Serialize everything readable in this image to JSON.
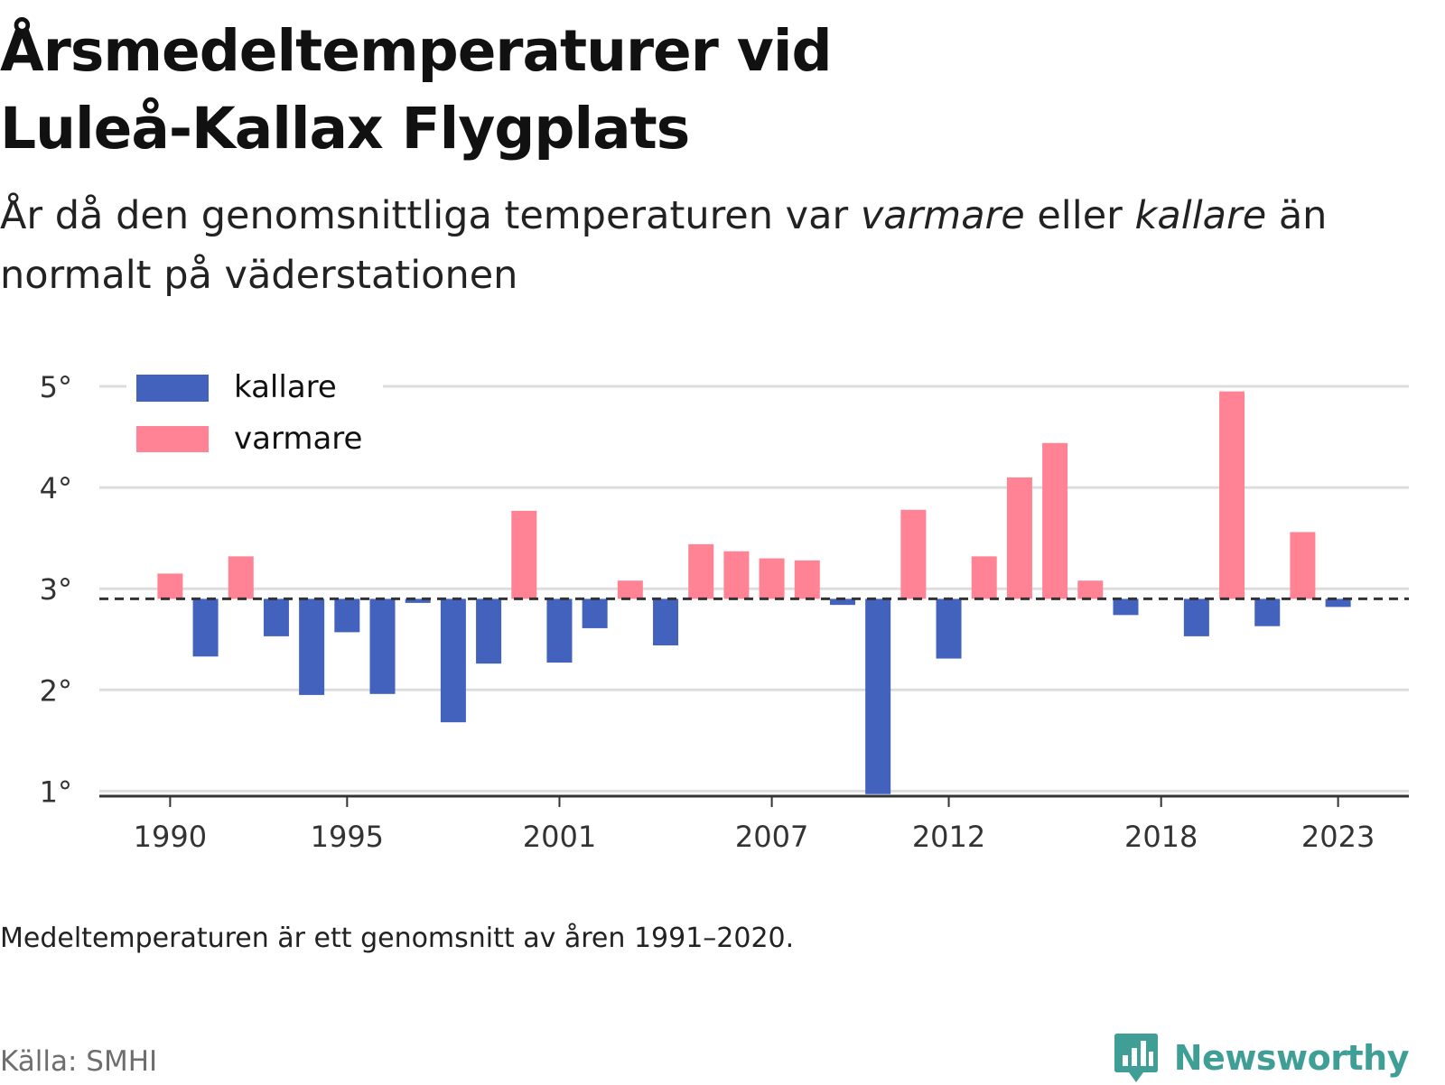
{
  "title": "Årsmedeltemperaturer vid Luleå-Kallax Flygplats",
  "subtitle": {
    "part1": "År då den genomsnittliga temperaturen var ",
    "warm_word": "varmare",
    "part2": " eller ",
    "cold_word": "kallare",
    "part3": " än normalt på väderstationen"
  },
  "note": "Medeltemperaturen är ett genomsnitt av åren 1991–2020.",
  "source": "Källa: SMHI",
  "brand": {
    "name": "Newsworthy",
    "icon": "bar-chart-bubble-icon"
  },
  "chart_data": {
    "type": "bar",
    "title": "",
    "xlabel": "",
    "ylabel": "",
    "baseline": 2.9,
    "ylim": [
      0.95,
      5.25
    ],
    "xlim": [
      1988,
      2025
    ],
    "y_ticks": [
      1,
      2,
      3,
      4,
      5
    ],
    "y_tick_labels": [
      "1°",
      "2°",
      "3°",
      "4°",
      "5°"
    ],
    "x_ticks": [
      1990,
      1995,
      2001,
      2007,
      2012,
      2018,
      2023
    ],
    "x_tick_labels": [
      "1990",
      "1995",
      "2001",
      "2007",
      "2012",
      "2018",
      "2023"
    ],
    "grid": true,
    "legend_position": "top-left",
    "legend": [
      {
        "key": "kallare",
        "label": "kallare",
        "color": "#4262bd"
      },
      {
        "key": "varmare",
        "label": "varmare",
        "color": "#ff8394"
      }
    ],
    "colors": {
      "cold": "#4262bd",
      "warm": "#ff8394",
      "grid": "#dddddd",
      "axis": "#333333",
      "baseline": "#333333"
    },
    "years": [
      1990,
      1991,
      1992,
      1993,
      1994,
      1995,
      1996,
      1997,
      1998,
      1999,
      2000,
      2001,
      2002,
      2003,
      2004,
      2005,
      2006,
      2007,
      2008,
      2009,
      2010,
      2011,
      2012,
      2013,
      2014,
      2015,
      2016,
      2017,
      2018,
      2019,
      2020,
      2021,
      2022,
      2023
    ],
    "values": [
      3.15,
      2.33,
      3.32,
      2.53,
      1.95,
      2.57,
      1.96,
      2.86,
      1.68,
      2.26,
      3.77,
      2.27,
      2.61,
      3.08,
      2.44,
      3.44,
      3.37,
      3.3,
      3.28,
      2.84,
      0.97,
      3.78,
      2.31,
      3.32,
      4.1,
      4.44,
      3.08,
      2.74,
      2.9,
      2.53,
      4.95,
      2.63,
      3.56,
      2.82
    ]
  }
}
